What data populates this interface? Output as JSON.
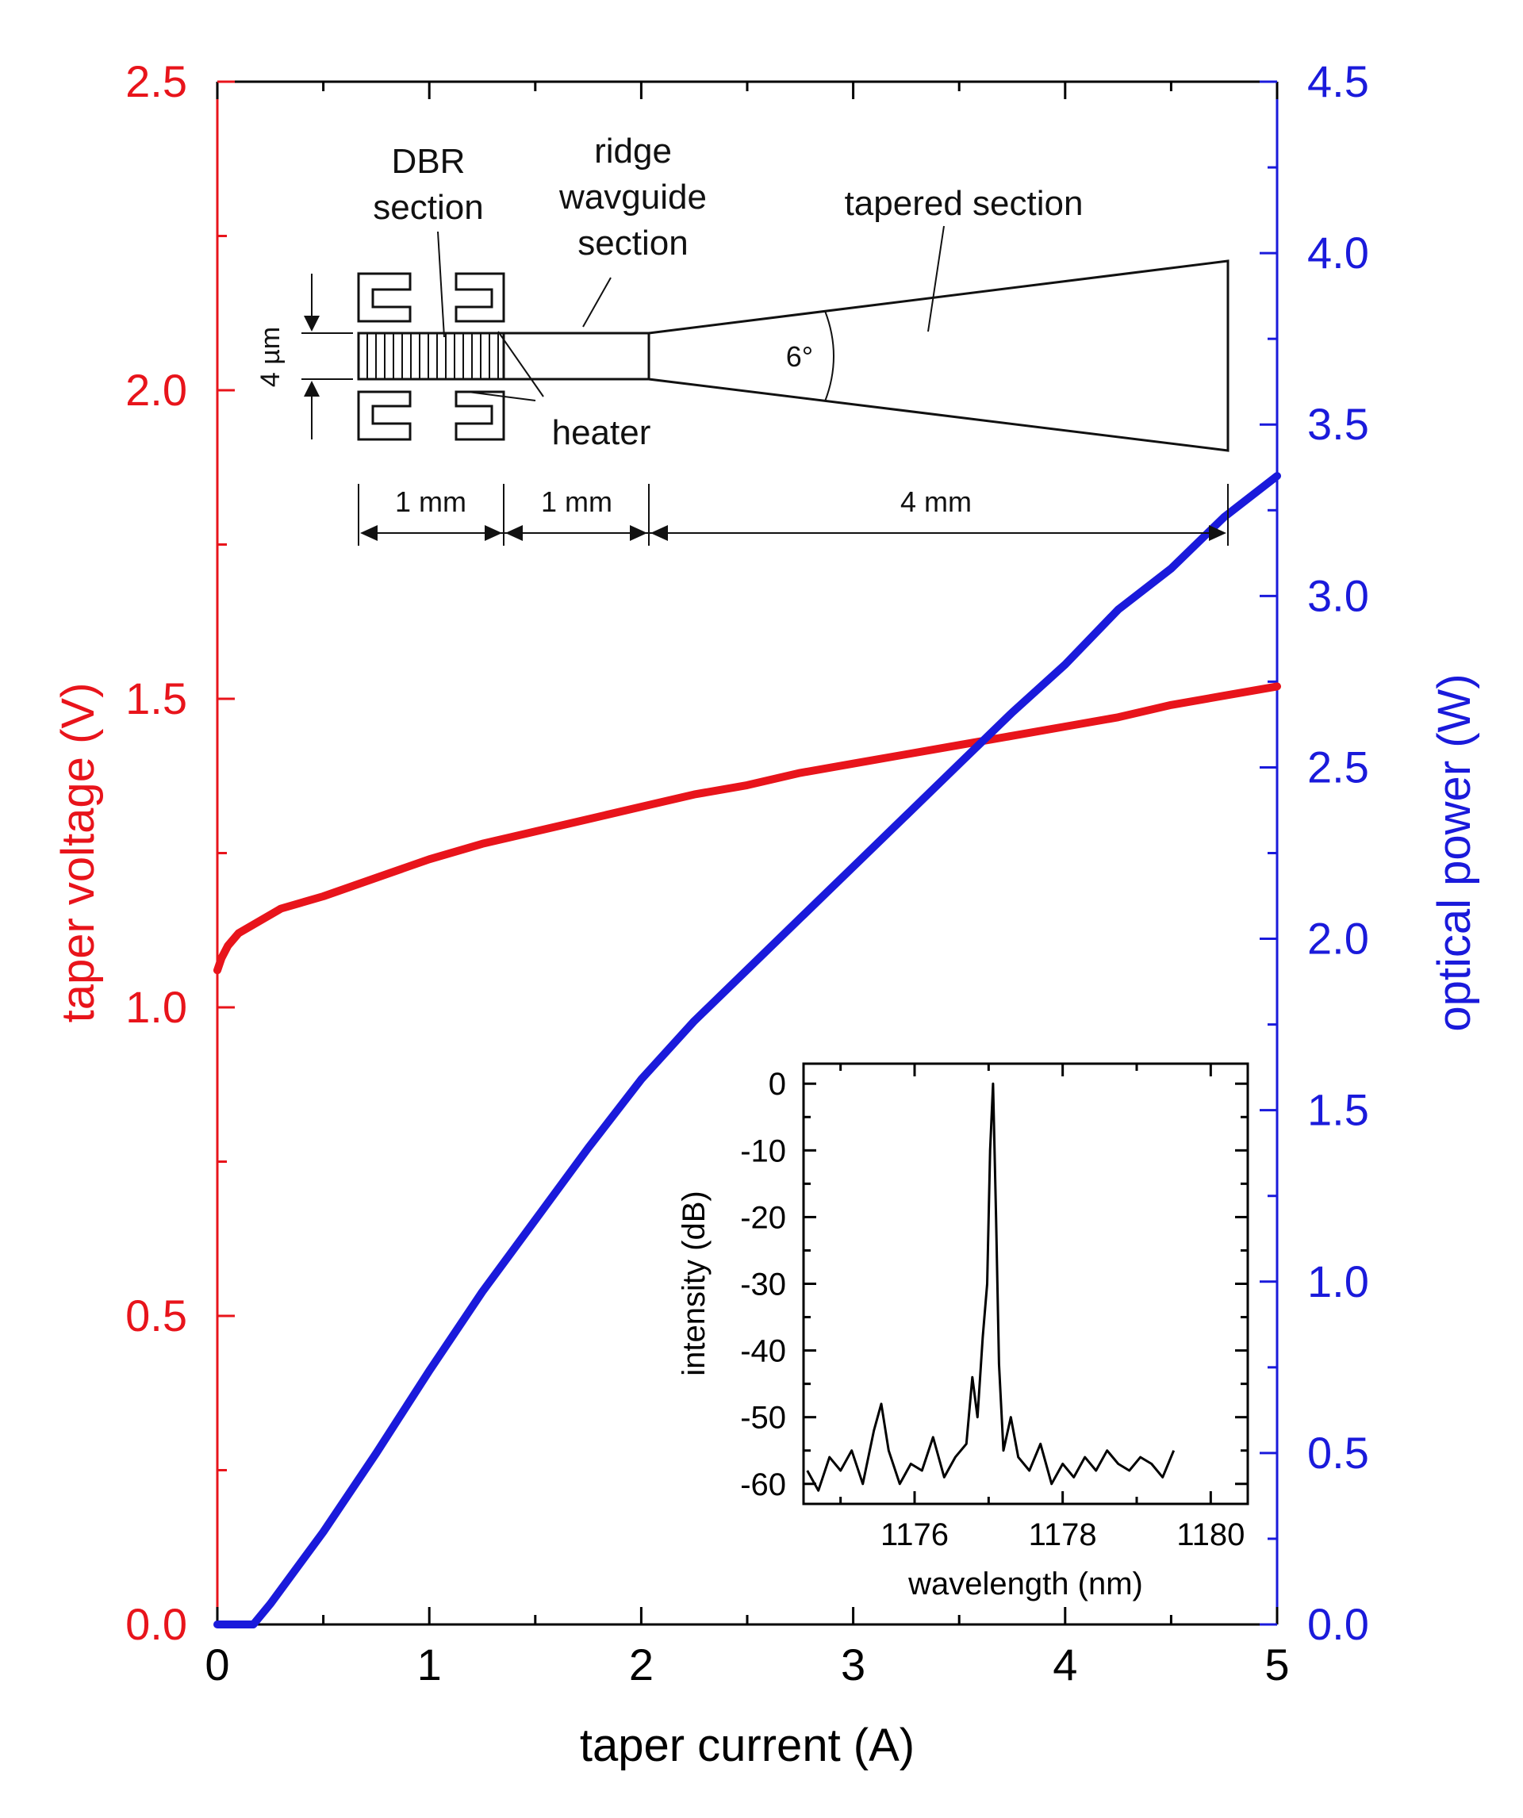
{
  "chart_data": {
    "type": "line",
    "xlabel": "taper current (A)",
    "ylabel_left": "taper voltage (V)",
    "ylabel_right": "optical power (W)",
    "xlim": [
      0,
      5
    ],
    "ylim_left": [
      0,
      2.5
    ],
    "ylim_right": [
      0,
      4.5
    ],
    "x_ticks": [
      "0",
      "1",
      "2",
      "3",
      "4",
      "5"
    ],
    "y_left_ticks": [
      "0.0",
      "0.5",
      "1.0",
      "1.5",
      "2.0",
      "2.5"
    ],
    "y_right_ticks": [
      "0.0",
      "0.5",
      "1.0",
      "1.5",
      "2.0",
      "2.5",
      "3.0",
      "3.5",
      "4.0",
      "4.5"
    ],
    "colors": {
      "left_axis": "#e8141b",
      "right_axis": "#1a1adb",
      "frame": "#000000"
    },
    "series": [
      {
        "axis": "left",
        "color": "#e8141b",
        "x": [
          0.0,
          0.02,
          0.05,
          0.1,
          0.2,
          0.3,
          0.5,
          0.75,
          1.0,
          1.25,
          1.5,
          1.75,
          2.0,
          2.25,
          2.5,
          2.75,
          3.0,
          3.25,
          3.5,
          3.75,
          4.0,
          4.25,
          4.5,
          4.75,
          5.0
        ],
        "values": [
          1.06,
          1.08,
          1.1,
          1.12,
          1.14,
          1.16,
          1.18,
          1.21,
          1.24,
          1.265,
          1.285,
          1.305,
          1.325,
          1.345,
          1.36,
          1.38,
          1.395,
          1.41,
          1.425,
          1.44,
          1.455,
          1.47,
          1.49,
          1.505,
          1.52
        ]
      },
      {
        "axis": "right",
        "color": "#1a1adb",
        "x": [
          0.0,
          0.1,
          0.17,
          0.25,
          0.5,
          0.75,
          1.0,
          1.25,
          1.5,
          1.75,
          2.0,
          2.25,
          2.5,
          2.75,
          3.0,
          3.25,
          3.5,
          3.75,
          4.0,
          4.25,
          4.5,
          4.75,
          5.0
        ],
        "values": [
          0.0,
          0.0,
          0.0,
          0.06,
          0.27,
          0.5,
          0.74,
          0.97,
          1.18,
          1.39,
          1.59,
          1.76,
          1.91,
          2.06,
          2.21,
          2.36,
          2.51,
          2.66,
          2.8,
          2.96,
          3.08,
          3.23,
          3.35
        ]
      }
    ],
    "diagram": {
      "label_dbr": [
        "DBR",
        "section"
      ],
      "label_ridge": [
        "ridge",
        "wavguide",
        "section"
      ],
      "label_tapered": "tapered section",
      "label_heater": "heater",
      "label_width": "4 µm",
      "label_angle": "6°",
      "dim_1": "1 mm",
      "dim_2": "1 mm",
      "dim_3": "4 mm"
    },
    "inset": {
      "type": "line",
      "xlabel": "wavelength (nm)",
      "ylabel": "intensity (dB)",
      "xlim": [
        1174.5,
        1180.5
      ],
      "ylim": [
        -63,
        3
      ],
      "x_ticks": [
        "1176",
        "1178",
        "1180"
      ],
      "y_ticks": [
        "0",
        "-10",
        "-20",
        "-30",
        "-40",
        "-50",
        "-60"
      ],
      "x": [
        1174.55,
        1174.7,
        1174.85,
        1175.0,
        1175.15,
        1175.3,
        1175.45,
        1175.55,
        1175.65,
        1175.8,
        1175.95,
        1176.1,
        1176.25,
        1176.4,
        1176.55,
        1176.7,
        1176.78,
        1176.85,
        1176.92,
        1176.98,
        1177.02,
        1177.06,
        1177.1,
        1177.14,
        1177.2,
        1177.3,
        1177.4,
        1177.55,
        1177.7,
        1177.85,
        1178.0,
        1178.15,
        1178.3,
        1178.45,
        1178.6,
        1178.75,
        1178.9,
        1179.05,
        1179.2,
        1179.35,
        1179.5
      ],
      "values": [
        -58,
        -61,
        -56,
        -58,
        -55,
        -60,
        -52,
        -48,
        -55,
        -60,
        -57,
        -58,
        -53,
        -59,
        -56,
        -54,
        -44,
        -50,
        -38,
        -30,
        -10,
        0,
        -20,
        -42,
        -55,
        -50,
        -56,
        -58,
        -54,
        -60,
        -57,
        -59,
        -56,
        -58,
        -55,
        -57,
        -58,
        -56,
        -57,
        -59,
        -55
      ]
    }
  }
}
